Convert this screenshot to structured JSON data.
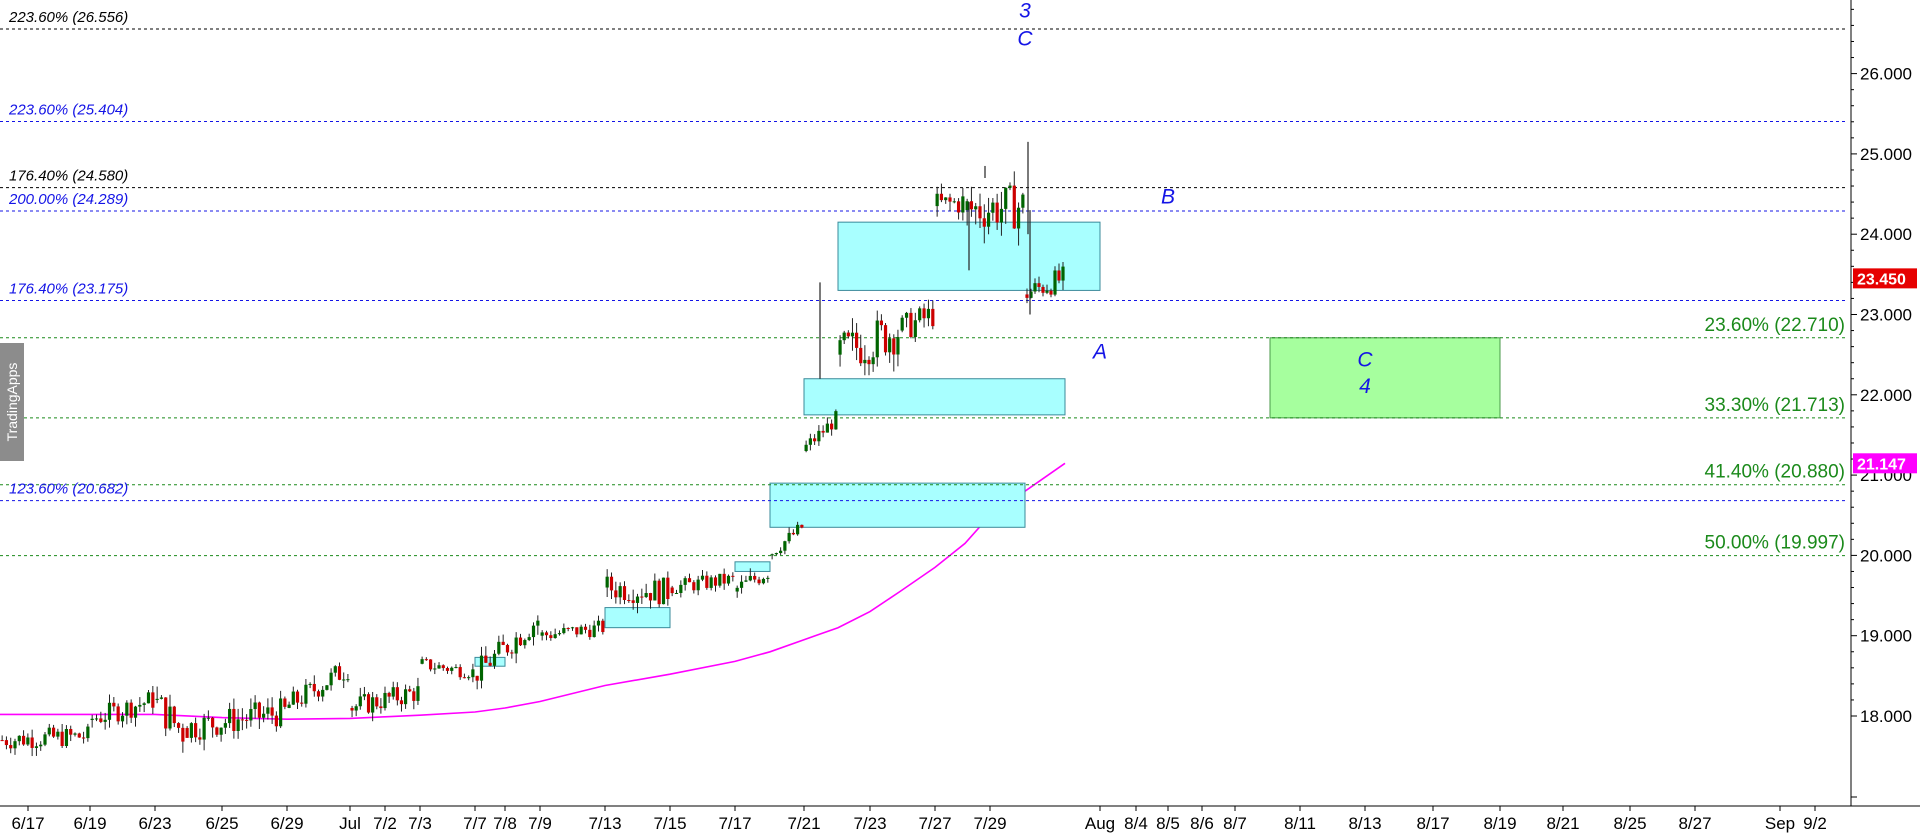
{
  "app": {
    "watermark": "TradingApps"
  },
  "chart_data": {
    "type": "candlestick",
    "grid": false,
    "colors": {
      "up_candle": "#006400",
      "down_candle": "#cc0000",
      "moving_average": "#ff00ff",
      "support_zone": "#a8ffff",
      "target_zone": "#a6ff9e",
      "blue_levels": "#1414e6",
      "black_levels": "#000000",
      "green_levels": "#1b8a1b",
      "price_tag": "#e60000",
      "ma_tag": "#ff00ff"
    },
    "y_axis": {
      "position": "right",
      "ylim": [
        17.0,
        27.0
      ],
      "ticks": [
        "18.000",
        "19.000",
        "20.000",
        "21.000",
        "22.000",
        "23.000",
        "24.000",
        "25.000",
        "26.000"
      ]
    },
    "x_axis": {
      "ticks": [
        "6/17",
        "6/19",
        "6/23",
        "6/25",
        "6/29",
        "Jul",
        "7/2",
        "7/3",
        "7/7",
        "7/8",
        "7/9",
        "7/13",
        "7/15",
        "7/17",
        "7/21",
        "7/23",
        "7/27",
        "7/29",
        "Aug",
        "8/4",
        "8/5",
        "8/6",
        "8/7",
        "8/11",
        "8/13",
        "8/17",
        "8/19",
        "8/21",
        "8/25",
        "8/27",
        "Sep",
        "9/2"
      ]
    },
    "last_price": "23.450",
    "moving_average_value": "21.147",
    "levels": [
      {
        "label": "223.60% (26.556)",
        "value": 26.556,
        "style": "black"
      },
      {
        "label": "223.60% (25.404)",
        "value": 25.404,
        "style": "blue"
      },
      {
        "label": "176.40% (24.580)",
        "value": 24.58,
        "style": "black"
      },
      {
        "label": "200.00% (24.289)",
        "value": 24.289,
        "style": "blue"
      },
      {
        "label": "176.40% (23.175)",
        "value": 23.175,
        "style": "blue"
      },
      {
        "label": "23.60% (22.710)",
        "value": 22.71,
        "style": "green"
      },
      {
        "label": "33.30% (21.713)",
        "value": 21.713,
        "style": "green"
      },
      {
        "label": "41.40% (20.880)",
        "value": 20.88,
        "style": "green"
      },
      {
        "label": "123.60% (20.682)",
        "value": 20.682,
        "style": "blue"
      },
      {
        "label": "50.00% (19.997)",
        "value": 19.997,
        "style": "green"
      }
    ],
    "zones": [
      {
        "kind": "support",
        "x_start": "7/22",
        "x_end": "8/1",
        "y_low": 23.3,
        "y_high": 24.15
      },
      {
        "kind": "support",
        "x_start": "7/21",
        "x_end": "7/31",
        "y_low": 21.75,
        "y_high": 22.2
      },
      {
        "kind": "support",
        "x_start": "7/20",
        "x_end": "7/30",
        "y_low": 20.35,
        "y_high": 20.9
      },
      {
        "kind": "support",
        "x_start": "7/17",
        "x_end": "7/20",
        "y_low": 19.8,
        "y_high": 19.92
      },
      {
        "kind": "support",
        "x_start": "7/13",
        "x_end": "7/15",
        "y_low": 19.1,
        "y_high": 19.35
      },
      {
        "kind": "support",
        "x_start": "7/7",
        "x_end": "7/8",
        "y_low": 18.62,
        "y_high": 18.73
      },
      {
        "kind": "target",
        "x_start": "8/8",
        "x_end": "8/19",
        "y_low": 21.713,
        "y_high": 22.71
      }
    ],
    "wave_labels": [
      {
        "text": "3",
        "x": "7/30",
        "y": 26.7
      },
      {
        "text": "C",
        "x": "7/30",
        "y": 26.35
      },
      {
        "text": "B",
        "x": "8/5",
        "y": 24.38
      },
      {
        "text": "A",
        "x": "8/1",
        "y": 22.45
      },
      {
        "text": "C",
        "x": "8/13",
        "y": 22.35
      },
      {
        "text": "4",
        "x": "8/13",
        "y": 22.02
      }
    ],
    "moving_average": [
      [
        "6/17",
        18.02
      ],
      [
        "6/19",
        18.02
      ],
      [
        "6/23",
        18.02
      ],
      [
        "6/25",
        17.98
      ],
      [
        "6/29",
        17.96
      ],
      [
        "7/1",
        17.97
      ],
      [
        "7/2",
        17.99
      ],
      [
        "7/3",
        18.01
      ],
      [
        "7/7",
        18.05
      ],
      [
        "7/8",
        18.1
      ],
      [
        "7/9",
        18.18
      ],
      [
        "7/13",
        18.38
      ],
      [
        "7/15",
        18.52
      ],
      [
        "7/17",
        18.68
      ],
      [
        "7/20",
        18.8
      ],
      [
        "7/21",
        18.95
      ],
      [
        "7/22",
        19.1
      ],
      [
        "7/23",
        19.3
      ],
      [
        "7/24",
        19.55
      ],
      [
        "7/27",
        19.85
      ],
      [
        "7/28",
        20.15
      ],
      [
        "7/29",
        20.5
      ],
      [
        "7/30",
        20.8
      ],
      [
        "7/31",
        21.147
      ]
    ],
    "price_segments": [
      {
        "start": "6/16",
        "end": "6/19",
        "from": 17.7,
        "to": 17.75,
        "wiggle": 0.13
      },
      {
        "start": "6/19",
        "end": "6/23",
        "from": 17.95,
        "to": 18.2,
        "wiggle": 0.14
      },
      {
        "start": "6/23",
        "end": "6/24",
        "from": 18.2,
        "to": 17.8,
        "wiggle": 0.22
      },
      {
        "start": "6/24",
        "end": "6/29",
        "from": 17.85,
        "to": 18.05,
        "wiggle": 0.18
      },
      {
        "start": "6/29",
        "end": "7/1",
        "from": 18.1,
        "to": 18.6,
        "wiggle": 0.15
      },
      {
        "start": "7/1",
        "end": "7/3",
        "from": 18.1,
        "to": 18.3,
        "wiggle": 0.14
      },
      {
        "start": "7/3",
        "end": "7/7",
        "from": 18.65,
        "to": 18.55,
        "wiggle": 0.09
      },
      {
        "start": "7/7",
        "end": "7/9",
        "from": 18.5,
        "to": 19.2,
        "wiggle": 0.16
      },
      {
        "start": "7/9",
        "end": "7/13",
        "from": 19.0,
        "to": 19.1,
        "wiggle": 0.1
      },
      {
        "start": "7/13",
        "end": "7/15",
        "from": 19.6,
        "to": 19.55,
        "wiggle": 0.17
      },
      {
        "start": "7/15",
        "end": "7/17",
        "from": 19.6,
        "to": 19.7,
        "wiggle": 0.1
      },
      {
        "start": "7/17",
        "end": "7/20",
        "from": 19.55,
        "to": 19.8,
        "wiggle": 0.12
      },
      {
        "start": "7/20",
        "end": "7/21",
        "from": 20.0,
        "to": 20.35,
        "wiggle": 0.09
      },
      {
        "start": "7/21",
        "end": "7/22",
        "from": 21.3,
        "to": 21.7,
        "wiggle": 0.1
      },
      {
        "start": "7/22",
        "end": "7/24",
        "from": 22.5,
        "to": 22.8,
        "wiggle": 0.28
      },
      {
        "start": "7/24",
        "end": "7/27",
        "from": 22.8,
        "to": 23.0,
        "wiggle": 0.18
      },
      {
        "start": "7/27",
        "end": "7/28",
        "from": 24.35,
        "to": 24.4,
        "wiggle": 0.17
      },
      {
        "start": "7/28",
        "end": "7/30",
        "from": 24.3,
        "to": 24.35,
        "wiggle": 0.28
      },
      {
        "start": "7/30",
        "end": "7/31",
        "from": 23.25,
        "to": 23.45,
        "wiggle": 0.15
      }
    ]
  }
}
